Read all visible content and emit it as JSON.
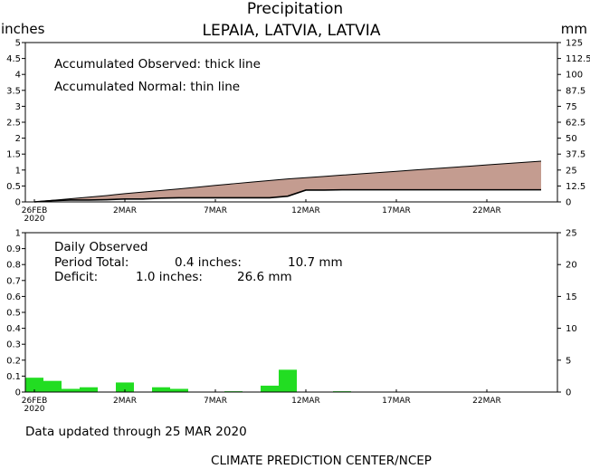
{
  "chart_data": [
    {
      "type": "area",
      "title": "Precipitation",
      "subtitle": "LEPAIA, LATVIA, LATVIA",
      "ylabel_left": "inches",
      "ylabel_right": "mm",
      "annotations": [
        "Accumulated Observed: thick line",
        "Accumulated Normal: thin line"
      ],
      "ylim_left": [
        0,
        5
      ],
      "ylim_right": [
        0,
        125
      ],
      "yticks_left": [
        "0",
        "0.5",
        "1",
        "1.5",
        "2",
        "2.5",
        "3",
        "3.5",
        "4",
        "4.5",
        "5"
      ],
      "yticks_right": [
        "0",
        "12.5",
        "25",
        "37.5",
        "50",
        "62.5",
        "75",
        "87.5",
        "100",
        "112.5",
        "125"
      ],
      "x_tick_labels": [
        "26FEB",
        "2MAR",
        "7MAR",
        "12MAR",
        "17MAR",
        "22MAR"
      ],
      "x_tick_sublabel": "2020",
      "x_tick_day_index": [
        0,
        5,
        10,
        15,
        20,
        25
      ],
      "x_range_days": [
        0,
        28
      ],
      "series": [
        {
          "line": "thick",
          "x_day_index": [
            0,
            1,
            2,
            3,
            4,
            5,
            6,
            7,
            8,
            9,
            10,
            11,
            12,
            13,
            14,
            15,
            16,
            17,
            18,
            19,
            20,
            21,
            22,
            23,
            24,
            25,
            26,
            27,
            28
          ],
          "values": [
            0.0,
            0.04,
            0.06,
            0.06,
            0.07,
            0.09,
            0.09,
            0.12,
            0.13,
            0.13,
            0.13,
            0.13,
            0.13,
            0.13,
            0.18,
            0.37,
            0.37,
            0.38,
            0.38,
            0.38,
            0.38,
            0.38,
            0.38,
            0.38,
            0.38,
            0.38,
            0.38,
            0.38,
            0.38
          ]
        },
        {
          "line": "thin",
          "x_day_index": [
            0,
            1,
            2,
            3,
            4,
            5,
            6,
            7,
            8,
            9,
            10,
            11,
            12,
            13,
            14,
            15,
            16,
            17,
            18,
            19,
            20,
            21,
            22,
            23,
            24,
            25,
            26,
            27,
            28
          ],
          "values": [
            0.0,
            0.05,
            0.1,
            0.15,
            0.2,
            0.26,
            0.31,
            0.36,
            0.41,
            0.46,
            0.52,
            0.57,
            0.62,
            0.67,
            0.72,
            0.76,
            0.8,
            0.84,
            0.88,
            0.92,
            0.96,
            1.0,
            1.04,
            1.08,
            1.12,
            1.16,
            1.2,
            1.24,
            1.28
          ]
        }
      ],
      "fill_color": "#c49c90"
    },
    {
      "type": "bar",
      "annotations": [
        "Daily Observed"
      ],
      "ylim_left": [
        0,
        1
      ],
      "ylim_right": [
        0,
        25
      ],
      "yticks_left": [
        "0",
        "0.1",
        "0.2",
        "0.3",
        "0.4",
        "0.5",
        "0.6",
        "0.7",
        "0.8",
        "0.9",
        "1"
      ],
      "yticks_right": [
        "0",
        "5",
        "10",
        "15",
        "20",
        "25"
      ],
      "x_tick_labels": [
        "26FEB",
        "2MAR",
        "7MAR",
        "12MAR",
        "17MAR",
        "22MAR"
      ],
      "x_tick_sublabel": "2020",
      "x_tick_day_index": [
        0,
        5,
        10,
        15,
        20,
        25
      ],
      "x_range_days": [
        0,
        28
      ],
      "x_day_index": [
        0,
        1,
        2,
        3,
        4,
        5,
        6,
        7,
        8,
        9,
        10,
        11,
        12,
        13,
        14,
        15,
        16,
        17,
        18,
        19,
        20,
        21,
        22,
        23,
        24,
        25,
        26,
        27,
        28
      ],
      "values": [
        0.09,
        0.07,
        0.02,
        0.03,
        0.0,
        0.06,
        0.0,
        0.03,
        0.02,
        0.0,
        0.0,
        0.005,
        0.0,
        0.04,
        0.14,
        0.0,
        0.0,
        0.005,
        0.0,
        0.0,
        0.0,
        0.0,
        0.0,
        0.0,
        0.0,
        0.0,
        0.0,
        0.0,
        0.0
      ],
      "bar_color": "#22dd22"
    }
  ],
  "daily_panel": {
    "title": "Daily Observed",
    "period_total_label": "Period Total:",
    "period_total_in": "0.4 inches:",
    "period_total_mm": "10.7 mm",
    "deficit_label": "Deficit:",
    "deficit_in": "1.0 inches:",
    "deficit_mm": "26.6 mm"
  },
  "footer": {
    "updated": "Data updated through 25 MAR 2020",
    "credit": "CLIMATE PREDICTION CENTER/NCEP"
  }
}
